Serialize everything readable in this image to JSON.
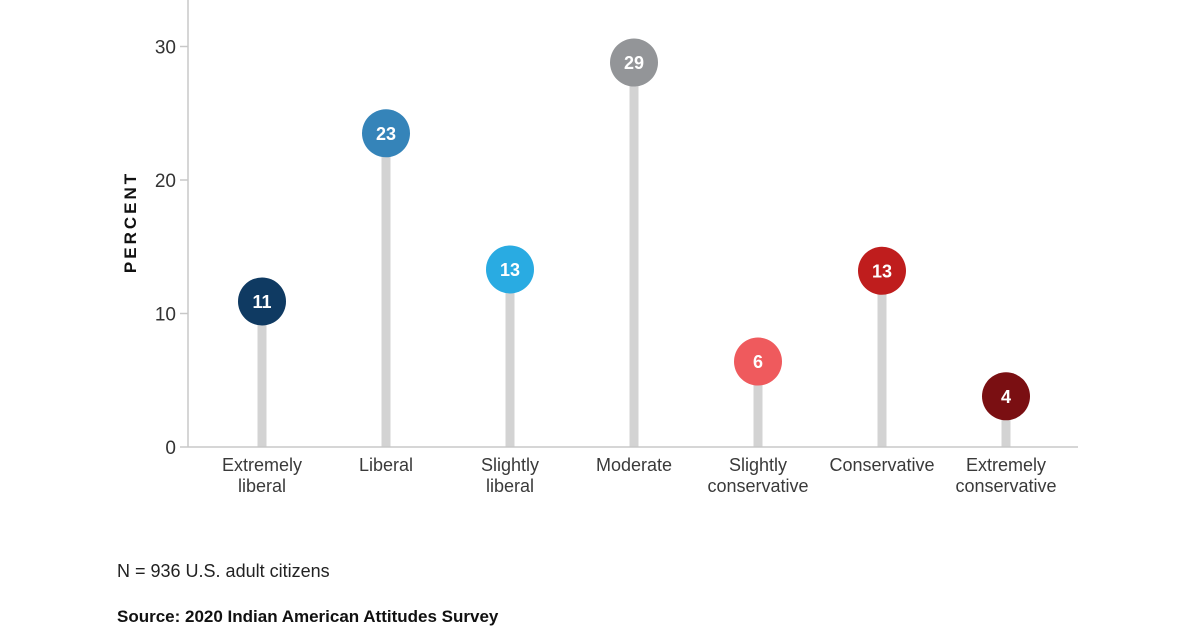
{
  "chart_data": {
    "type": "lollipop",
    "title": "",
    "xlabel": "",
    "ylabel": "PERCENT",
    "ylim": [
      0,
      33
    ],
    "yticks": [
      0,
      10,
      20,
      30
    ],
    "grid": false,
    "categories": [
      [
        "Extremely",
        "liberal"
      ],
      [
        "Liberal"
      ],
      [
        "Slightly",
        "liberal"
      ],
      [
        "Moderate"
      ],
      [
        "Slightly",
        "conservative"
      ],
      [
        "Conservative"
      ],
      [
        "Extremely",
        "conservative"
      ]
    ],
    "values": [
      11,
      23,
      13,
      29,
      6,
      13,
      4
    ],
    "plotted_values": [
      10.9,
      23.5,
      13.3,
      28.8,
      6.4,
      13.2,
      3.8
    ],
    "colors": [
      "#0f3a62",
      "#3584b9",
      "#29abe2",
      "#939598",
      "#ef5a5d",
      "#bf1d1d",
      "#7a0f12"
    ],
    "stem_color": "#d3d3d3"
  },
  "footer": {
    "note": "N = 936 U.S. adult citizens",
    "source": "Source: 2020 Indian American Attitudes Survey"
  }
}
